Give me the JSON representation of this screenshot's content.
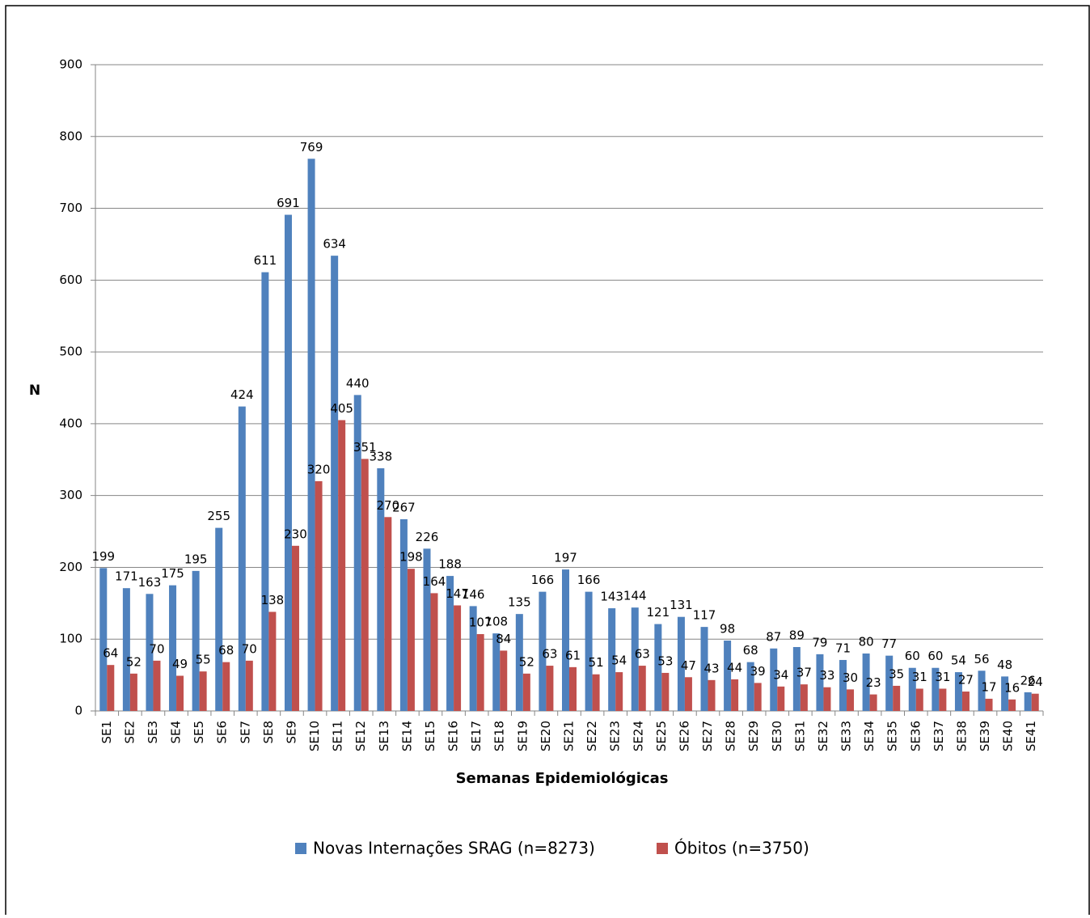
{
  "chart_data": {
    "type": "bar",
    "x_label": "Semanas Epidemiológicas",
    "y_label": "N",
    "categories": [
      "SE1",
      "SE2",
      "SE3",
      "SE4",
      "SE5",
      "SE6",
      "SE7",
      "SE8",
      "SE9",
      "SE10",
      "SE11",
      "SE12",
      "SE13",
      "SE14",
      "SE15",
      "SE16",
      "SE17",
      "SE18",
      "SE19",
      "SE20",
      "SE21",
      "SE22",
      "SE23",
      "SE24",
      "SE25",
      "SE26",
      "SE27",
      "SE28",
      "SE29",
      "SE30",
      "SE31",
      "SE32",
      "SE33",
      "SE34",
      "SE35",
      "SE36",
      "SE37",
      "SE38",
      "SE39",
      "SE40",
      "SE41"
    ],
    "series": [
      {
        "name": "Novas Internações SRAG (n=8273)",
        "color": "#4f81bd",
        "values": [
          199,
          171,
          163,
          175,
          195,
          255,
          424,
          611,
          691,
          769,
          634,
          440,
          338,
          267,
          226,
          188,
          146,
          108,
          135,
          166,
          197,
          166,
          143,
          144,
          121,
          131,
          117,
          98,
          68,
          87,
          89,
          79,
          71,
          80,
          77,
          60,
          60,
          54,
          56,
          48,
          26
        ]
      },
      {
        "name": "Óbitos (n=3750)",
        "color": "#c0504d",
        "values": [
          64,
          52,
          70,
          49,
          55,
          68,
          70,
          138,
          230,
          320,
          405,
          351,
          270,
          198,
          164,
          147,
          107,
          84,
          52,
          63,
          61,
          51,
          54,
          63,
          53,
          47,
          43,
          44,
          39,
          34,
          37,
          33,
          30,
          23,
          35,
          31,
          31,
          27,
          17,
          16,
          24
        ]
      }
    ],
    "ylim": [
      0,
      900
    ],
    "yticks": [
      0,
      100,
      200,
      300,
      400,
      500,
      600,
      700,
      800,
      900
    ],
    "grid": true,
    "legend": "bottom"
  }
}
